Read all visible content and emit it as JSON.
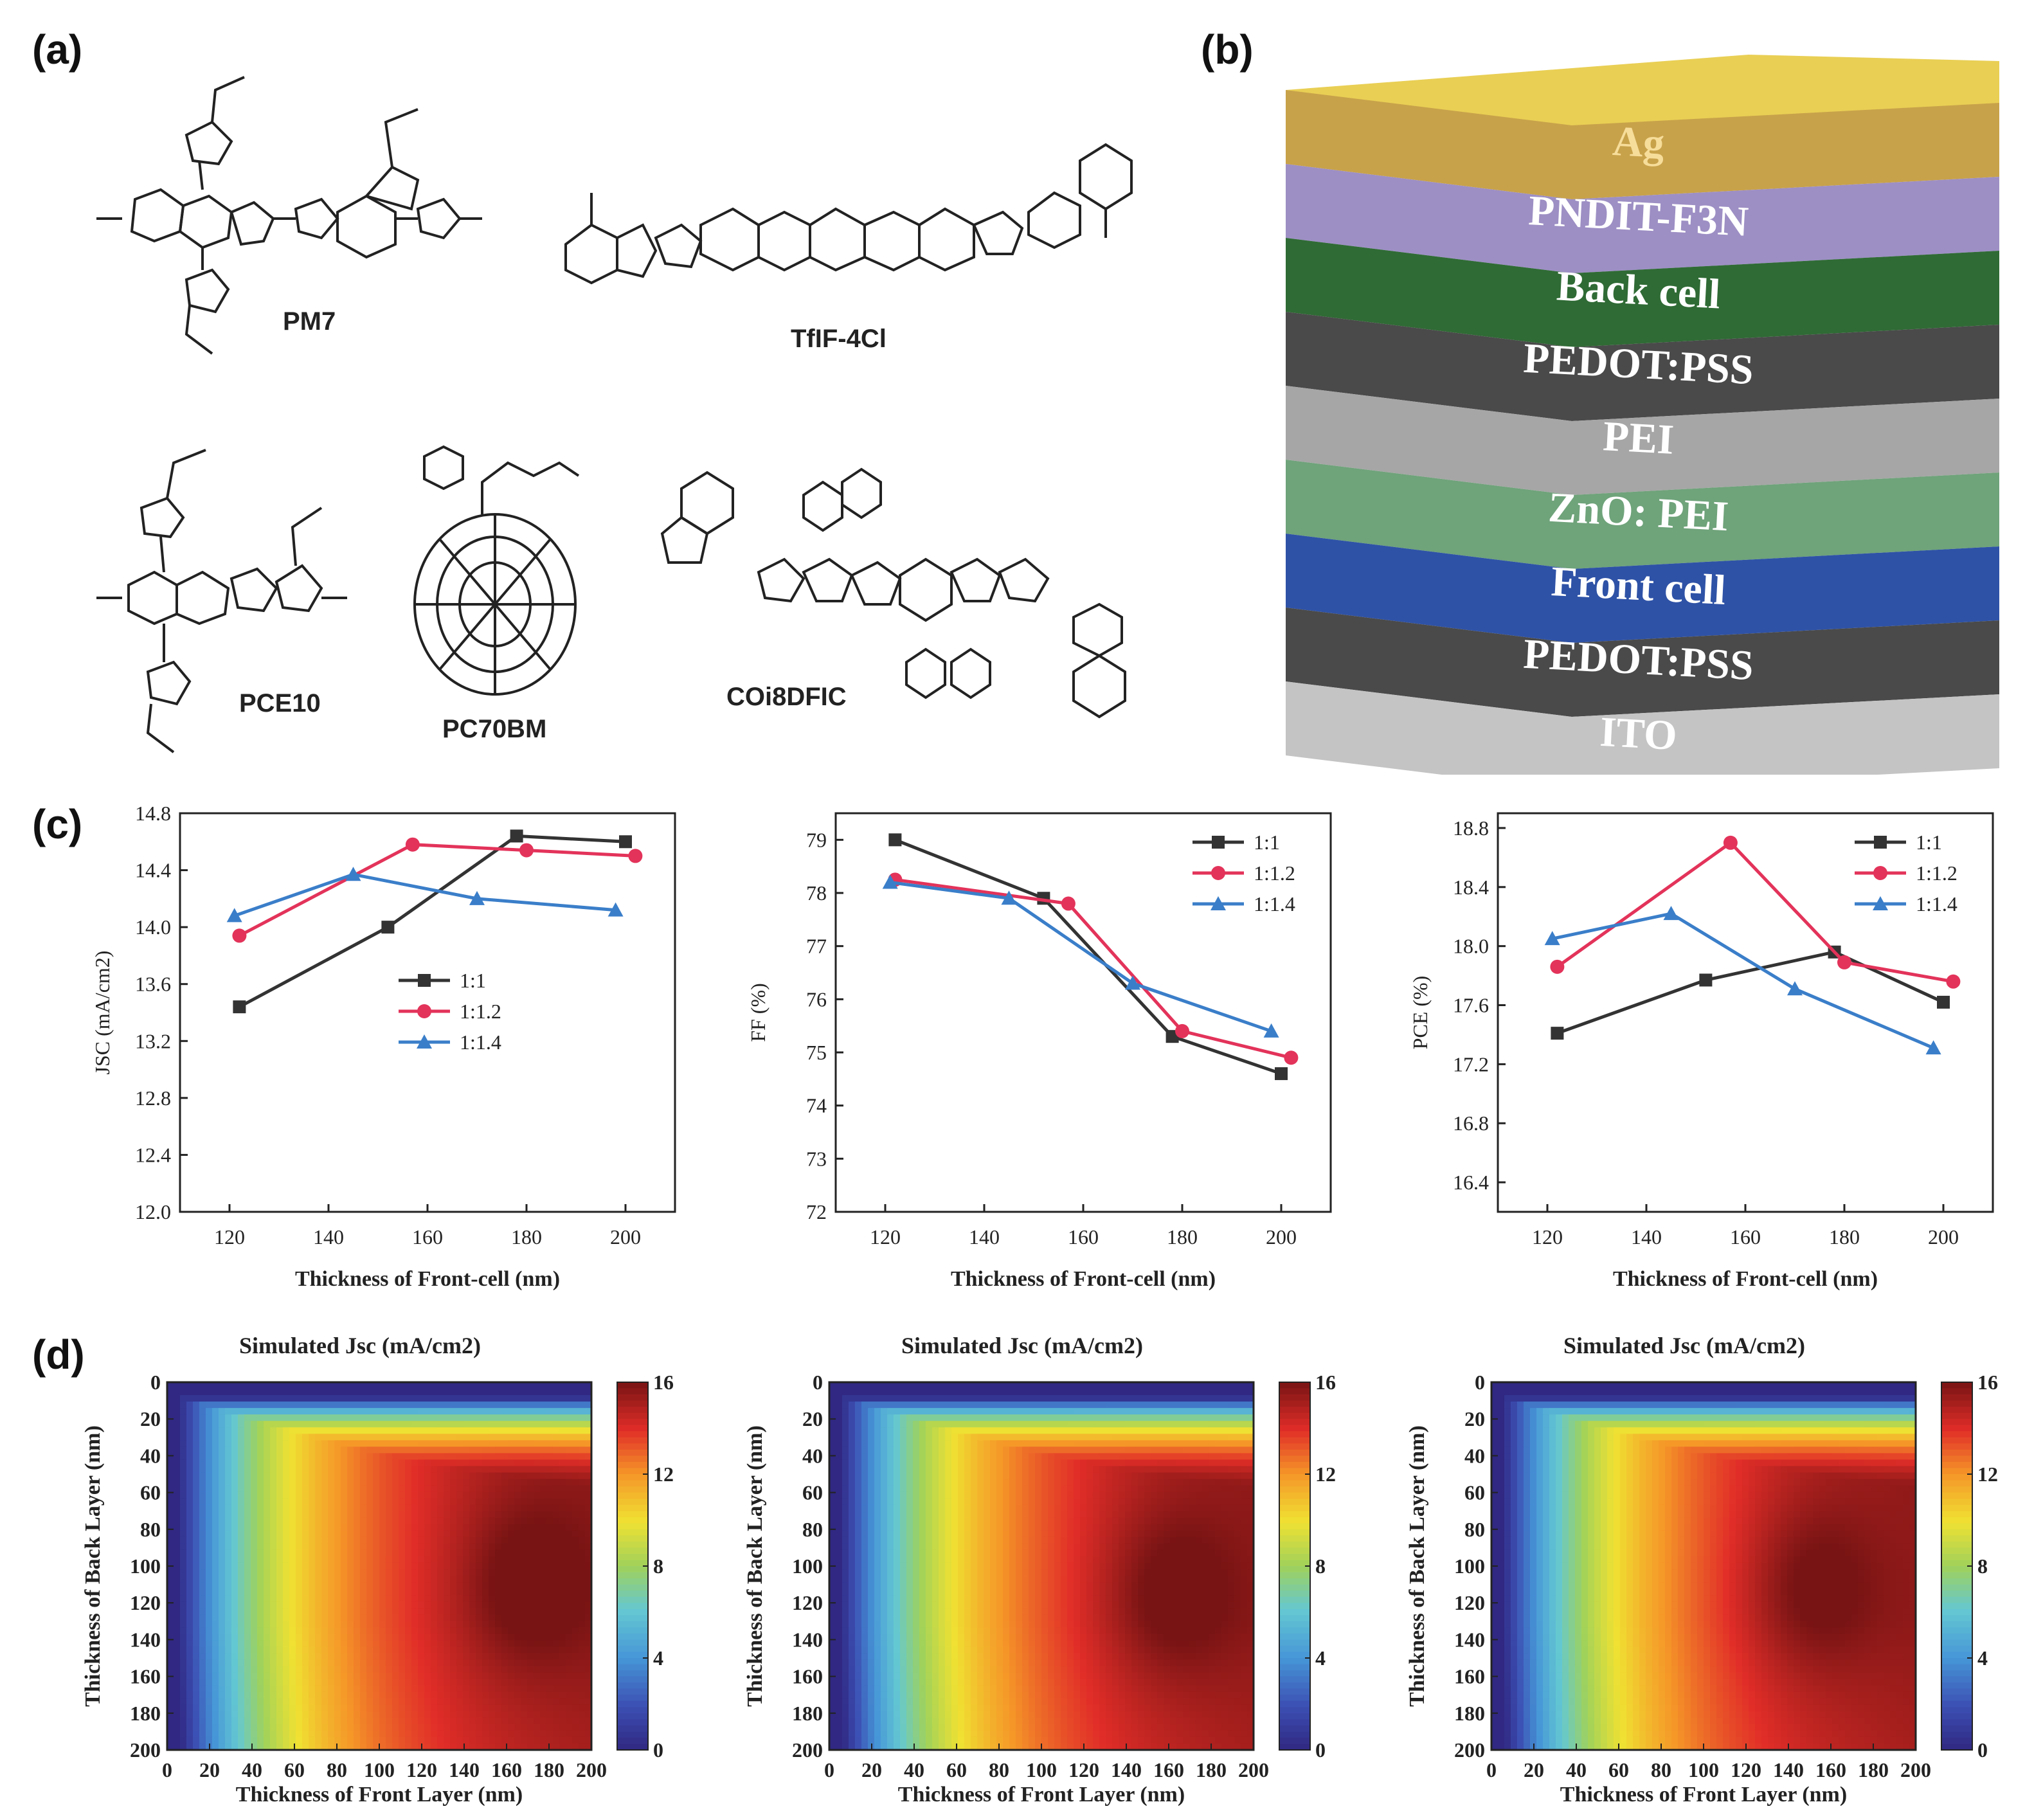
{
  "panels": {
    "a": "(a)",
    "b": "(b)",
    "c": "(c)",
    "d": "(d)"
  },
  "molecules": [
    {
      "id": "pm7",
      "name": "PM7"
    },
    {
      "id": "tfif",
      "name": "TfIF-4Cl"
    },
    {
      "id": "pce10",
      "name": "PCE10"
    },
    {
      "id": "pc70bm",
      "name": "PC70BM"
    },
    {
      "id": "co8dfic",
      "name": "COi8DFIC"
    }
  ],
  "device_stack": {
    "layers": [
      {
        "name": "Ag",
        "color": "#c8a24a",
        "text_color": "#f6dd9a"
      },
      {
        "name": "PNDIT-F3N",
        "color": "#9d8fc4",
        "text_color": "#ffffff"
      },
      {
        "name": "Back cell",
        "color": "#2f6b35",
        "text_color": "#ffffff"
      },
      {
        "name": "PEDOT:PSS",
        "color": "#4a4a4a",
        "text_color": "#ffffff"
      },
      {
        "name": "PEI",
        "color": "#a6a6a6",
        "text_color": "#ffffff"
      },
      {
        "name": "ZnO: PEI",
        "color": "#6fa37a",
        "text_color": "#ffffff"
      },
      {
        "name": "Front cell",
        "color": "#2e52a6",
        "text_color": "#ffffff"
      },
      {
        "name": "PEDOT:PSS",
        "color": "#4a4a4a",
        "text_color": "#ffffff"
      },
      {
        "name": "ITO",
        "color": "#c4c4c4",
        "text_color": "#ffffff"
      }
    ],
    "top_color": "#e9cf54"
  },
  "chart_data": [
    {
      "type": "line",
      "xlabel": "Thickness of Front-cell (nm)",
      "ylabel": "JSC (mA/cm2)",
      "xlim": [
        110,
        210
      ],
      "ylim": [
        12.0,
        14.8
      ],
      "xticks": [
        "120",
        "140",
        "160",
        "180",
        "200"
      ],
      "yticks": [
        "12.0",
        "12.4",
        "12.8",
        "13.2",
        "13.6",
        "14.0",
        "14.4",
        "14.8"
      ],
      "legend_position": "center",
      "series": [
        {
          "name": "1:1",
          "color": "#333333",
          "marker": "square",
          "x": [
            122,
            152,
            178,
            200
          ],
          "y": [
            13.44,
            14.0,
            14.64,
            14.6
          ]
        },
        {
          "name": "1:1.2",
          "color": "#e3335a",
          "marker": "circle",
          "x": [
            122,
            157,
            180,
            202
          ],
          "y": [
            13.94,
            14.58,
            14.54,
            14.5
          ]
        },
        {
          "name": "1:1.4",
          "color": "#3a7ec9",
          "marker": "triangle",
          "x": [
            121,
            145,
            170,
            198
          ],
          "y": [
            14.08,
            14.37,
            14.2,
            14.12
          ]
        }
      ]
    },
    {
      "type": "line",
      "xlabel": "Thickness of Front-cell (nm)",
      "ylabel": "FF (%)",
      "xlim": [
        110,
        210
      ],
      "ylim": [
        72,
        79.5
      ],
      "xticks": [
        "120",
        "140",
        "160",
        "180",
        "200"
      ],
      "yticks": [
        "72",
        "73",
        "74",
        "75",
        "76",
        "77",
        "78",
        "79"
      ],
      "legend_position": "top-right",
      "series": [
        {
          "name": "1:1",
          "color": "#333333",
          "marker": "square",
          "x": [
            122,
            152,
            178,
            200
          ],
          "y": [
            79.0,
            77.9,
            75.3,
            74.6
          ]
        },
        {
          "name": "1:1.2",
          "color": "#e3335a",
          "marker": "circle",
          "x": [
            122,
            157,
            180,
            202
          ],
          "y": [
            78.25,
            77.8,
            75.4,
            74.9
          ]
        },
        {
          "name": "1:1.4",
          "color": "#3a7ec9",
          "marker": "triangle",
          "x": [
            121,
            145,
            170,
            198
          ],
          "y": [
            78.2,
            77.9,
            76.3,
            75.4
          ]
        }
      ]
    },
    {
      "type": "line",
      "xlabel": "Thickness of Front-cell (nm)",
      "ylabel": "PCE (%)",
      "xlim": [
        110,
        210
      ],
      "ylim": [
        16.2,
        18.9
      ],
      "xticks": [
        "120",
        "140",
        "160",
        "180",
        "200"
      ],
      "yticks": [
        "16.4",
        "16.8",
        "17.2",
        "17.6",
        "18.0",
        "18.4",
        "18.8"
      ],
      "legend_position": "top-right",
      "series": [
        {
          "name": "1:1",
          "color": "#333333",
          "marker": "square",
          "x": [
            122,
            152,
            178,
            200
          ],
          "y": [
            17.41,
            17.77,
            17.96,
            17.62
          ]
        },
        {
          "name": "1:1.2",
          "color": "#e3335a",
          "marker": "circle",
          "x": [
            122,
            157,
            180,
            202
          ],
          "y": [
            17.86,
            18.7,
            17.89,
            17.76
          ]
        },
        {
          "name": "1:1.4",
          "color": "#3a7ec9",
          "marker": "triangle",
          "x": [
            121,
            145,
            170,
            198
          ],
          "y": [
            18.05,
            18.22,
            17.71,
            17.31
          ]
        }
      ]
    },
    {
      "type": "heatmap",
      "title": "Simulated Jsc (mA/cm2)",
      "xlabel": "Thickness of Front Layer (nm)",
      "ylabel": "Thickness of Back Layer (nm)",
      "xlim": [
        0,
        200
      ],
      "ylim": [
        0,
        200
      ],
      "xticks": [
        "0",
        "20",
        "40",
        "60",
        "80",
        "100",
        "120",
        "140",
        "160",
        "180",
        "200"
      ],
      "yticks": [
        "0",
        "20",
        "40",
        "60",
        "80",
        "100",
        "120",
        "140",
        "160",
        "180",
        "200"
      ],
      "colorbar": {
        "range": [
          0,
          16
        ],
        "ticks": [
          "0",
          "4",
          "8",
          "12",
          "16"
        ]
      },
      "peak": {
        "x": 168,
        "y": 110
      }
    },
    {
      "type": "heatmap",
      "title": "Simulated Jsc (mA/cm2)",
      "xlabel": "Thickness of Front Layer (nm)",
      "ylabel": "Thickness of Back Layer (nm)",
      "xlim": [
        0,
        200
      ],
      "ylim": [
        0,
        200
      ],
      "xticks": [
        "0",
        "20",
        "40",
        "60",
        "80",
        "100",
        "120",
        "140",
        "160",
        "180",
        "200"
      ],
      "yticks": [
        "0",
        "20",
        "40",
        "60",
        "80",
        "100",
        "120",
        "140",
        "160",
        "180",
        "200"
      ],
      "colorbar": {
        "range": [
          0,
          16
        ],
        "ticks": [
          "0",
          "4",
          "8",
          "12",
          "16"
        ]
      },
      "peak": {
        "x": 160,
        "y": 115
      }
    },
    {
      "type": "heatmap",
      "title": "Simulated Jsc (mA/cm2)",
      "xlabel": "Thickness of Front Layer (nm)",
      "ylabel": "Thickness of Back Layer (nm)",
      "xlim": [
        0,
        200
      ],
      "ylim": [
        0,
        200
      ],
      "xticks": [
        "0",
        "20",
        "40",
        "60",
        "80",
        "100",
        "120",
        "140",
        "160",
        "180",
        "200"
      ],
      "yticks": [
        "0",
        "20",
        "40",
        "60",
        "80",
        "100",
        "120",
        "140",
        "160",
        "180",
        "200"
      ],
      "colorbar": {
        "range": [
          0,
          16
        ],
        "ticks": [
          "0",
          "4",
          "8",
          "12",
          "16"
        ]
      },
      "peak": {
        "x": 150,
        "y": 112
      }
    }
  ]
}
